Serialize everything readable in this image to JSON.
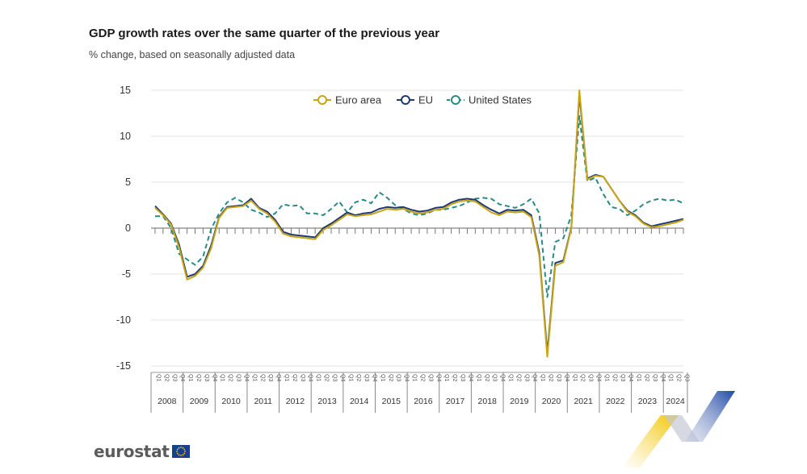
{
  "header": {
    "title": "GDP growth rates over the same quarter of the previous year",
    "subtitle": "% change, based on seasonally adjusted data"
  },
  "logo": {
    "text": "eurostat",
    "flag_icon": "eu-flag-icon"
  },
  "colors": {
    "euro_area": "#c9a414",
    "eu": "#1f3a73",
    "united_states": "#2a8a86",
    "grid": "#e3e3e3",
    "axis": "#666666"
  },
  "chart_data": {
    "type": "line",
    "title": "GDP growth rates over the same quarter of the previous year",
    "subtitle": "% change, based on seasonally adjusted data",
    "ylim": [
      -15,
      15
    ],
    "yticks": [
      15,
      10,
      5,
      0,
      -5,
      -10,
      -15
    ],
    "ytick_labels": [
      "15",
      "10",
      "5",
      "0",
      "-5",
      "-10",
      "-15"
    ],
    "grid": true,
    "legend_position": "top-center",
    "quarter_labels": [
      "Q1",
      "Q2",
      "Q3",
      "Q4"
    ],
    "years": [
      "2008",
      "2009",
      "2010",
      "2011",
      "2012",
      "2013",
      "2014",
      "2015",
      "2016",
      "2017",
      "2018",
      "2019",
      "2020",
      "2021",
      "2022",
      "2023",
      "2024"
    ],
    "series": [
      {
        "name": "Euro area",
        "style": "solid",
        "values": [
          2.2,
          1.4,
          0.4,
          -2.1,
          -5.6,
          -5.2,
          -4.3,
          -2.2,
          1.1,
          2.2,
          2.3,
          2.4,
          3.0,
          2.1,
          1.6,
          0.7,
          -0.6,
          -0.9,
          -1.0,
          -1.1,
          -1.2,
          -0.2,
          0.3,
          0.9,
          1.5,
          1.3,
          1.4,
          1.5,
          1.8,
          2.1,
          2.0,
          2.1,
          1.8,
          1.6,
          1.7,
          2.0,
          2.1,
          2.6,
          2.9,
          3.0,
          2.9,
          2.3,
          1.7,
          1.4,
          1.8,
          1.7,
          1.8,
          1.2,
          -3.0,
          -14.0,
          -4.1,
          -3.7,
          0.0,
          15.0,
          5.3,
          5.7,
          5.6,
          4.3,
          3.0,
          1.8,
          1.3,
          0.5,
          0.1,
          0.2,
          0.4,
          0.6,
          0.9
        ]
      },
      {
        "name": "EU",
        "style": "solid",
        "values": [
          2.4,
          1.5,
          0.5,
          -1.8,
          -5.3,
          -5.0,
          -4.1,
          -1.9,
          1.2,
          2.3,
          2.4,
          2.5,
          3.2,
          2.2,
          1.8,
          0.9,
          -0.4,
          -0.7,
          -0.8,
          -0.9,
          -1.0,
          0.0,
          0.5,
          1.1,
          1.7,
          1.4,
          1.6,
          1.7,
          2.1,
          2.3,
          2.2,
          2.3,
          2.0,
          1.8,
          1.9,
          2.2,
          2.3,
          2.8,
          3.1,
          3.2,
          3.1,
          2.5,
          2.0,
          1.6,
          2.0,
          1.9,
          2.0,
          1.4,
          -2.7,
          -13.6,
          -3.8,
          -3.5,
          0.1,
          14.6,
          5.4,
          5.8,
          5.6,
          4.3,
          3.0,
          1.9,
          1.4,
          0.6,
          0.2,
          0.4,
          0.6,
          0.8,
          1.0
        ]
      },
      {
        "name": "United States",
        "style": "dashed",
        "values": [
          1.3,
          1.3,
          0.0,
          -2.8,
          -3.4,
          -4.0,
          -3.1,
          -0.1,
          1.6,
          2.8,
          3.3,
          2.8,
          2.0,
          1.7,
          1.2,
          1.6,
          2.6,
          2.4,
          2.5,
          1.6,
          1.6,
          1.4,
          2.1,
          2.9,
          1.7,
          2.8,
          3.1,
          2.7,
          3.9,
          3.3,
          2.5,
          2.1,
          1.6,
          1.4,
          1.6,
          2.0,
          2.0,
          2.2,
          2.4,
          2.8,
          3.2,
          3.3,
          3.2,
          2.6,
          2.4,
          2.2,
          2.6,
          3.2,
          1.6,
          -7.5,
          -1.5,
          -1.1,
          1.4,
          12.2,
          5.1,
          5.5,
          3.7,
          2.3,
          2.1,
          1.4,
          1.9,
          2.6,
          3.0,
          3.2,
          3.0,
          3.1,
          2.7
        ]
      }
    ]
  }
}
